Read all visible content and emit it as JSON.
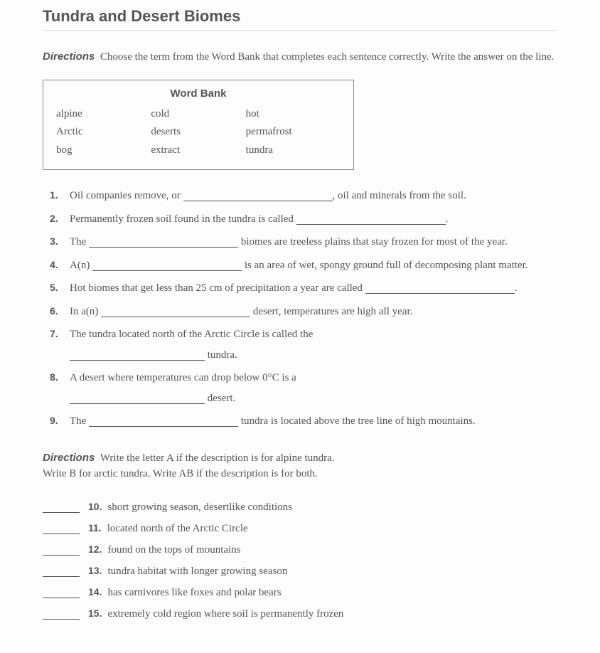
{
  "title": "Tundra and Desert Biomes",
  "directions1_label": "Directions",
  "directions1_text": "Choose the term from the Word Bank that completes each sentence correctly. Write the answer on the line.",
  "wordbank": {
    "title": "Word Bank",
    "col1": {
      "a": "alpine",
      "b": "Arctic",
      "c": "bog"
    },
    "col2": {
      "a": "cold",
      "b": "deserts",
      "c": "extract"
    },
    "col3": {
      "a": "hot",
      "b": "permafrost",
      "c": "tundra"
    }
  },
  "q": {
    "q1a": "Oil companies remove, or ",
    "q1b": ", oil and minerals from the soil.",
    "q2a": "Permanently frozen soil found in the tundra is called ",
    "q2b": ".",
    "q3a": "The ",
    "q3b": " biomes are treeless plains that stay frozen for most of the year.",
    "q4a": "A(n) ",
    "q4b": " is an area of wet, spongy ground full of decomposing plant matter.",
    "q5a": "Hot biomes that get less than 25 cm of precipitation a year are called ",
    "q5b": ".",
    "q6a": "In a(n) ",
    "q6b": " desert, temperatures are high all year.",
    "q7a": "The tundra located north of the Arctic Circle is called the",
    "q7b": " tundra.",
    "q8a": "A desert where temperatures can drop below 0°C is a",
    "q8b": " desert.",
    "q9a": "The ",
    "q9b": " tundra is located above the tree line of high mountains."
  },
  "directions2_label": "Directions",
  "directions2_line1": "Write the letter A if the description is for alpine tundra.",
  "directions2_line2": "Write B for arctic tundra. Write AB if the description is for both.",
  "ab": {
    "n10": "10.",
    "t10": "short growing season, desertlike conditions",
    "n11": "11.",
    "t11": "located north of the Arctic Circle",
    "n12": "12.",
    "t12": "found on the tops of mountains",
    "n13": "13.",
    "t13": "tundra habitat with longer growing season",
    "n14": "14.",
    "t14": "has carnivores like foxes and polar bears",
    "n15": "15.",
    "t15": "extremely cold region where soil is permanently frozen"
  }
}
